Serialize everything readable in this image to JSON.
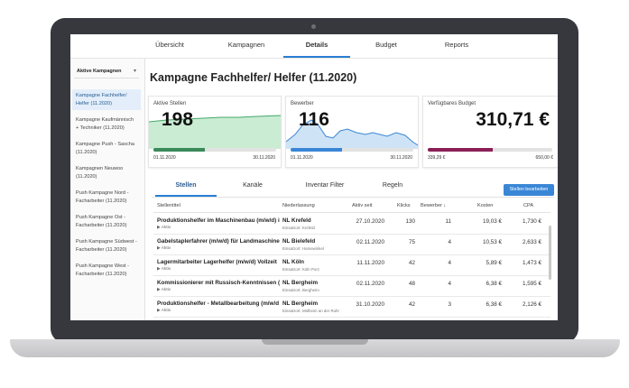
{
  "nav": {
    "tabs": [
      "Übersicht",
      "Kampagnen",
      "Details",
      "Budget",
      "Reports"
    ],
    "active": "Details"
  },
  "sidebar": {
    "dropdown_label": "Aktive Kampagnen",
    "items": [
      {
        "label": "Kampagne Fachhelfer/ Helfer (11.2020)",
        "active": true
      },
      {
        "label": "Kampagne Kaufmännisch + Techniker (11.2020)"
      },
      {
        "label": "Kampagne Push - Sascha (11.2020)"
      },
      {
        "label": "Kampagnen Neuwoo (11.2020)"
      },
      {
        "label": "Push Kampagne Nord - Facharbeiter (11.2020)"
      },
      {
        "label": "Push Kampagne Ost - Facharbeiter (11.2020)"
      },
      {
        "label": "Push Kampagne Südwest - Facharbeiter (11.2020)"
      },
      {
        "label": "Push Kampagne West - Facharbeiter (11.2020)"
      }
    ]
  },
  "page_title": "Kampagne Fachhelfer/ Helfer (11.2020)",
  "cards": {
    "stellen": {
      "label": "Aktive Stellen",
      "value": "198",
      "start": "01.11.2020",
      "end": "30.11.2020",
      "progress": 0.42,
      "color": "#3a8a5a"
    },
    "bewerber": {
      "label": "Bewerber",
      "value": "116",
      "start": "01.11.2020",
      "end": "30.11.2020",
      "progress": 0.42,
      "color": "#3a86d6"
    },
    "budget": {
      "label": "Verfügbares Budget",
      "value": "310,71 €",
      "start": "339,29 €",
      "end": "650,00 €",
      "progress": 0.52,
      "color": "#8a1f55"
    }
  },
  "subtabs": [
    "Stellen",
    "Kanäle",
    "Inventar Filter",
    "Regeln"
  ],
  "edit_button": "Stellen bearbeiten",
  "table": {
    "headers": [
      "Stellentitel",
      "Niederlassung",
      "Aktiv seit",
      "Klicks",
      "Bewerber ↓",
      "Kosten",
      "CPA"
    ],
    "rows": [
      {
        "title": "Produktionshelfer im Maschinenbau (m/w/d) i",
        "status": "▶ Aktiv",
        "nl": "NL Krefeld",
        "ort": "Einsatzort: Krefeld",
        "since": "27.10.2020",
        "clicks": "130",
        "applicants": "11",
        "cost": "19,03 €",
        "cpa": "1,730 €"
      },
      {
        "title": "Gabelstaplerfahrer (m/w/d) für Landmaschine",
        "status": "▶ Aktiv",
        "nl": "NL Bielefeld",
        "ort": "Einsatzort: Harsewinkel",
        "since": "02.11.2020",
        "clicks": "75",
        "applicants": "4",
        "cost": "10,53 €",
        "cpa": "2,633 €"
      },
      {
        "title": "Lagermitarbeiter Lagerhelfer (m/w/d) Vollzeit",
        "status": "▶ Aktiv",
        "nl": "NL Köln",
        "ort": "Einsatzort: Köln Porz",
        "since": "11.11.2020",
        "clicks": "42",
        "applicants": "4",
        "cost": "5,89 €",
        "cpa": "1,473 €"
      },
      {
        "title": "Kommissionierer mit Russisch-Kenntnissen (r",
        "status": "▶ Aktiv",
        "nl": "NL Bergheim",
        "ort": "Einsatzort: Bergheim",
        "since": "02.11.2020",
        "clicks": "48",
        "applicants": "4",
        "cost": "6,38 €",
        "cpa": "1,595 €"
      },
      {
        "title": "Produktionshelfer - Metallbearbeitung (m/w/d",
        "status": "▶ Aktiv",
        "nl": "NL Bergheim",
        "ort": "Einsatzort: Mülheim an der Ruhr",
        "since": "31.10.2020",
        "clicks": "42",
        "applicants": "3",
        "cost": "6,38 €",
        "cpa": "2,126 €"
      }
    ]
  }
}
